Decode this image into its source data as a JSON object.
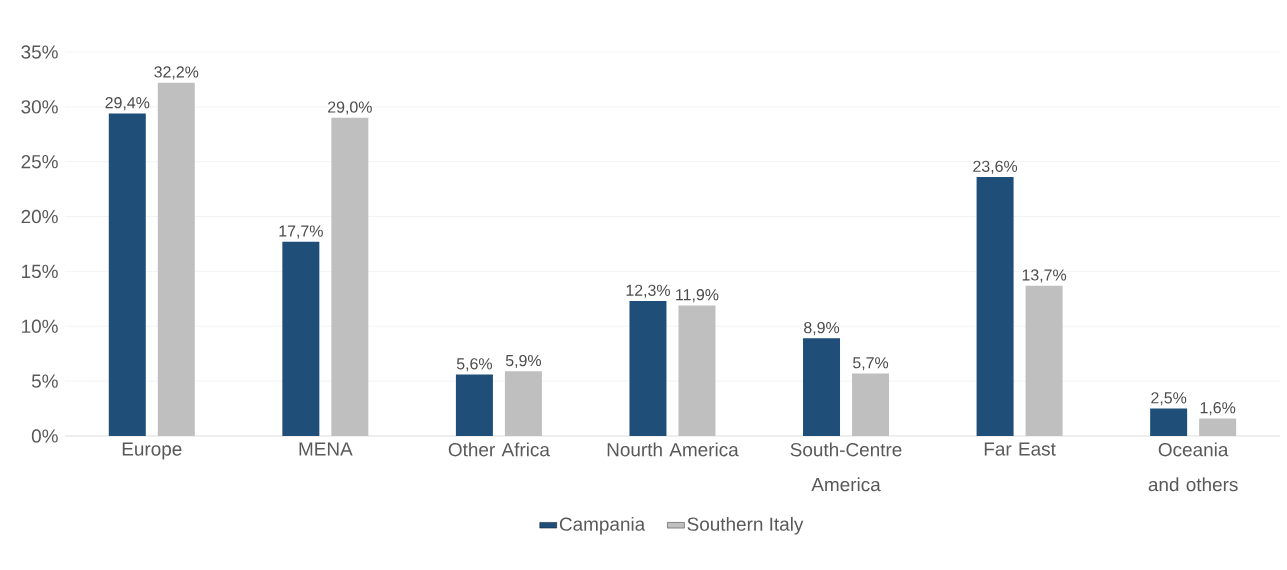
{
  "chart_data": {
    "type": "bar",
    "categories": [
      "Europe",
      "MENA",
      "Other Africa",
      "Nourth America",
      "South-Centre America",
      "Far East",
      "Oceania and others"
    ],
    "series": [
      {
        "name": "Campania",
        "color": "#1f4e79",
        "values": [
          29.4,
          17.7,
          5.6,
          12.3,
          8.9,
          23.6,
          2.5
        ],
        "value_labels": [
          "29,4%",
          "17,7%",
          "5,6%",
          "12,3%",
          "8,9%",
          "23,6%",
          "2,5%"
        ]
      },
      {
        "name": "Southern Italy",
        "color": "#bfbfbf",
        "values": [
          32.2,
          29.0,
          5.9,
          11.9,
          5.7,
          13.7,
          1.6
        ],
        "value_labels": [
          "32,2%",
          "29,0%",
          "5,9%",
          "11,9%",
          "5,7%",
          "13,7%",
          "1,6%"
        ]
      }
    ],
    "ylim": [
      0,
      35
    ],
    "yticks": [
      {
        "value": 0,
        "label": "0%"
      },
      {
        "value": 5,
        "label": "5%"
      },
      {
        "value": 10,
        "label": "10%"
      },
      {
        "value": 15,
        "label": "15%"
      },
      {
        "value": 20,
        "label": "20%"
      },
      {
        "value": 25,
        "label": "25%"
      },
      {
        "value": 30,
        "label": "30%"
      },
      {
        "value": 35,
        "label": "35%"
      }
    ],
    "grid": "y",
    "legend": "bottom"
  }
}
